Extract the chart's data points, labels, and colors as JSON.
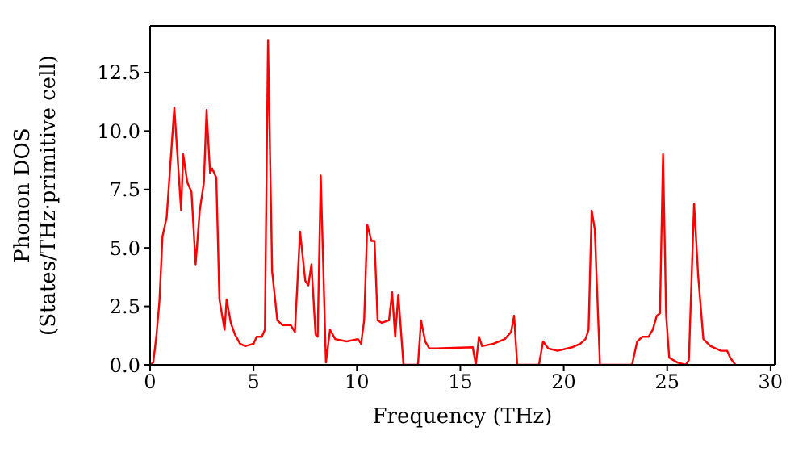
{
  "chart_data": {
    "type": "line",
    "xlabel": "Frequency (THz)",
    "ylabel": "Phonon DOS\n(States/THz·primitive cell)",
    "x": [
      0,
      0.15,
      0.3,
      0.45,
      0.6,
      0.8,
      1.17,
      1.5,
      1.6,
      1.8,
      2.0,
      2.2,
      2.4,
      2.6,
      2.73,
      2.9,
      3.0,
      3.2,
      3.35,
      3.6,
      3.7,
      3.9,
      4.1,
      4.35,
      4.6,
      5.0,
      5.15,
      5.4,
      5.55,
      5.7,
      5.9,
      6.15,
      6.4,
      6.8,
      7.0,
      7.25,
      7.5,
      7.65,
      7.8,
      8.0,
      8.1,
      8.25,
      8.5,
      8.7,
      8.95,
      9.5,
      10.05,
      10.2,
      10.35,
      10.5,
      10.7,
      10.85,
      11.0,
      11.2,
      11.55,
      11.7,
      11.85,
      12.0,
      12.25,
      12.95,
      13.1,
      13.3,
      13.5,
      13.8,
      15.6,
      15.75,
      15.9,
      16.05,
      16.6,
      17.15,
      17.45,
      17.6,
      17.75,
      18.8,
      19.0,
      19.25,
      19.7,
      20.4,
      20.8,
      21.05,
      21.2,
      21.35,
      21.5,
      21.75,
      23.3,
      23.55,
      23.8,
      24.1,
      24.3,
      24.5,
      24.65,
      24.8,
      24.95,
      25.1,
      25.5,
      25.9,
      26.05,
      26.3,
      26.5,
      26.75,
      27.1,
      27.6,
      27.9,
      28.05,
      28.3
    ],
    "series": [
      {
        "color": "#ff0000",
        "values": [
          0,
          0.1,
          1.2,
          2.7,
          5.5,
          6.3,
          11.0,
          6.6,
          9.0,
          7.8,
          7.4,
          4.3,
          6.6,
          7.8,
          10.9,
          8.2,
          8.4,
          8.0,
          2.8,
          1.5,
          2.8,
          1.8,
          1.3,
          0.9,
          0.8,
          0.9,
          1.2,
          1.2,
          1.5,
          13.9,
          4.0,
          1.9,
          1.7,
          1.7,
          1.4,
          5.7,
          3.6,
          3.4,
          4.3,
          1.3,
          1.2,
          8.1,
          0.1,
          1.5,
          1.1,
          1.0,
          1.1,
          0.9,
          1.9,
          6.0,
          5.3,
          5.3,
          1.9,
          1.8,
          1.9,
          3.1,
          1.2,
          3.0,
          0,
          0,
          1.9,
          1.0,
          0.7,
          0.7,
          0.75,
          0,
          1.2,
          0.8,
          0.9,
          1.1,
          1.4,
          2.1,
          0,
          0,
          1.0,
          0.7,
          0.6,
          0.75,
          0.9,
          1.1,
          1.5,
          6.6,
          5.8,
          0,
          0,
          1.0,
          1.2,
          1.2,
          1.5,
          2.1,
          2.2,
          9.0,
          2.1,
          0.3,
          0.1,
          0,
          0.2,
          6.9,
          3.8,
          1.1,
          0.8,
          0.6,
          0.6,
          0.3,
          0
        ]
      }
    ],
    "xlim": [
      0,
      30.2
    ],
    "xticks": [
      0,
      5,
      10,
      15,
      20,
      25,
      30
    ],
    "ylim": [
      0,
      14.5
    ],
    "yticks": [
      {
        "value": 0,
        "label": "0.0"
      },
      {
        "value": 2.5,
        "label": "2.5"
      },
      {
        "value": 5,
        "label": "5.0"
      },
      {
        "value": 7.5,
        "label": "7.5"
      },
      {
        "value": 10,
        "label": "10.0"
      },
      {
        "value": 12.5,
        "label": "12.5"
      }
    ],
    "grid": false,
    "marker": "none",
    "line_style": "solid"
  }
}
